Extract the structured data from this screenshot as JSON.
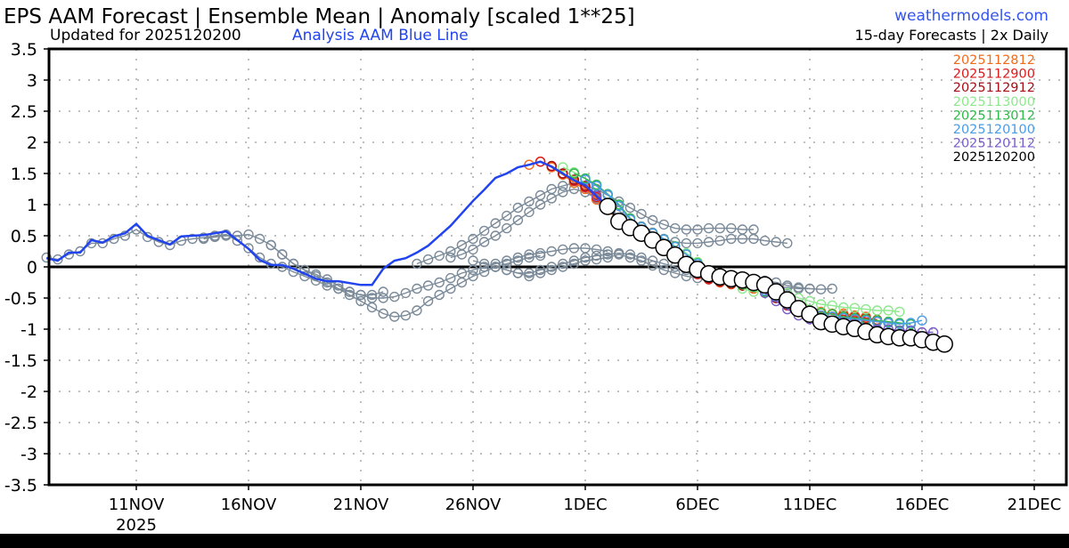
{
  "header": {
    "title": "EPS AAM Forecast | Ensemble Mean | Anomaly [scaled 1**25]",
    "updated": "Updated for 2025120200",
    "analysis_note": "Analysis AAM Blue Line",
    "site": "weathermodels.com",
    "cadence": "15-day Forecasts | 2x Daily"
  },
  "colors": {
    "analysis": "#2244ee",
    "site": "#3355ee",
    "grey": "#7a8a99",
    "axis": "#000000"
  },
  "chart_data": {
    "type": "line",
    "title": "EPS AAM Forecast | Ensemble Mean | Anomaly [scaled 1**25]",
    "x_units": "days since 2025-11-01 00Z",
    "xlim": [
      6.1,
      51.35
    ],
    "ylim": [
      -3.5,
      3.5
    ],
    "grid": true,
    "legend_placement": "top-right",
    "y_ticks": [
      3.5,
      3,
      2.5,
      2,
      1.5,
      1,
      0.5,
      0,
      -0.5,
      -1,
      -1.5,
      -2,
      -2.5,
      -3,
      -3.5
    ],
    "y_tick_labels": [
      "3.5",
      "3",
      "2.5",
      "2",
      "1.5",
      "1",
      "0.5",
      "0",
      "-0.5",
      "-1",
      "-1.5",
      "-2",
      "-2.5",
      "-3",
      "-3.5"
    ],
    "x_ticks": [
      {
        "day": 10,
        "label": "11NOV",
        "sub": "2025"
      },
      {
        "day": 15,
        "label": "16NOV"
      },
      {
        "day": 20,
        "label": "21NOV"
      },
      {
        "day": 25,
        "label": "26NOV"
      },
      {
        "day": 30,
        "label": "1DEC"
      },
      {
        "day": 35,
        "label": "6DEC"
      },
      {
        "day": 40,
        "label": "11DEC"
      },
      {
        "day": 45,
        "label": "16DEC"
      },
      {
        "day": 50,
        "label": "21DEC"
      }
    ],
    "step_days": 0.5,
    "analysis": {
      "name": "Analysis AAM",
      "start": 6,
      "values": [
        0.14,
        0.1,
        0.23,
        0.23,
        0.43,
        0.39,
        0.49,
        0.54,
        0.69,
        0.5,
        0.43,
        0.36,
        0.49,
        0.5,
        0.51,
        0.54,
        0.57,
        0.43,
        0.29,
        0.11,
        0.03,
        0.03,
        -0.03,
        -0.11,
        -0.19,
        -0.23,
        -0.23,
        -0.26,
        -0.29,
        -0.29,
        -0.03,
        0.1,
        0.14,
        0.23,
        0.34,
        0.5,
        0.66,
        0.86,
        1.06,
        1.24,
        1.43,
        1.5,
        1.6,
        1.64,
        1.69,
        1.61,
        1.5,
        1.39,
        1.31,
        1.14,
        0.97
      ]
    },
    "older_runs": [
      {
        "start": 6,
        "values": [
          0.15,
          0.12,
          0.2,
          0.25,
          0.38,
          0.38,
          0.45,
          0.5,
          0.6,
          0.48,
          0.4,
          0.35,
          0.42,
          0.45,
          0.47,
          0.5,
          0.52,
          0.42,
          0.3,
          0.15,
          0.05,
          0,
          -0.08,
          -0.15,
          -0.22,
          -0.3,
          -0.35,
          -0.4,
          -0.45,
          -0.45,
          -0.4
        ]
      },
      {
        "start": 13,
        "values": [
          0.45,
          0.48,
          0.5,
          0.5,
          0.52,
          0.45,
          0.35,
          0.2,
          0.05,
          -0.05,
          -0.15,
          -0.25,
          -0.35,
          -0.45,
          -0.55,
          -0.65,
          -0.75,
          -0.8,
          -0.78,
          -0.7,
          -0.55,
          -0.45,
          -0.35,
          -0.25,
          -0.15,
          -0.08,
          0,
          0.05,
          0.1,
          0.15,
          0.18
        ]
      },
      {
        "start": 16,
        "values": [
          0.35,
          0.2,
          0.05,
          -0.05,
          -0.12,
          -0.2,
          -0.3,
          -0.4,
          -0.45,
          -0.5,
          -0.5,
          -0.48,
          -0.42,
          -0.35,
          -0.3,
          -0.25,
          -0.18,
          -0.1,
          -0.05,
          0,
          0.05,
          0.1,
          0.15,
          0.2,
          0.22,
          0.25,
          0.28,
          0.3,
          0.3,
          0.28,
          0.25
        ]
      },
      {
        "start": 22.5,
        "values": [
          0.05,
          0.12,
          0.18,
          0.25,
          0.35,
          0.45,
          0.58,
          0.7,
          0.82,
          0.95,
          1.05,
          1.15,
          1.25,
          1.3,
          1.35,
          1.3,
          1.25,
          1.15,
          1.05,
          0.95,
          0.85,
          0.75,
          0.68,
          0.62,
          0.6,
          0.6,
          0.62,
          0.62,
          0.62,
          0.6,
          0.6
        ]
      },
      {
        "start": 24,
        "values": [
          0.15,
          0.2,
          0.28,
          0.4,
          0.5,
          0.62,
          0.75,
          0.88,
          1.0,
          1.1,
          1.2,
          1.25,
          1.2,
          1.1,
          1.0,
          0.9,
          0.78,
          0.65,
          0.55,
          0.45,
          0.4,
          0.38,
          0.38,
          0.4,
          0.42,
          0.45,
          0.45,
          0.45,
          0.42,
          0.4,
          0.38
        ]
      },
      {
        "start": 25,
        "values": [
          0.1,
          0.05,
          0,
          -0.05,
          -0.1,
          -0.1,
          -0.05,
          0,
          0.05,
          0.1,
          0.15,
          0.18,
          0.2,
          0.22,
          0.2,
          0.15,
          0.1,
          0.05,
          0,
          -0.05,
          -0.1,
          -0.15,
          -0.2,
          -0.22,
          -0.2,
          -0.2,
          -0.22,
          -0.25,
          -0.3,
          -0.33,
          -0.35
        ]
      },
      {
        "start": 26,
        "values": [
          0,
          -0.05,
          -0.1,
          -0.15,
          -0.1,
          -0.05,
          0,
          0.05,
          0.1,
          0.12,
          0.15,
          0.2,
          0.15,
          0.1,
          0.02,
          -0.05,
          -0.1,
          -0.15,
          -0.18,
          -0.2,
          -0.22,
          -0.25,
          -0.28,
          -0.3,
          -0.3,
          -0.32,
          -0.33,
          -0.35,
          -0.35,
          -0.36,
          -0.35
        ]
      }
    ],
    "series": [
      {
        "name": "2025112812",
        "color": "#f26a1b",
        "start": 27.5,
        "values": [
          1.64,
          1.69,
          1.6,
          1.48,
          1.35,
          1.25,
          1.08,
          0.92,
          0.72,
          0.6,
          0.5,
          0.4,
          0.28,
          0.16,
          0.02,
          -0.1,
          -0.2,
          -0.25,
          -0.28,
          -0.3,
          -0.35,
          -0.4,
          -0.5,
          -0.6,
          -0.65,
          -0.7,
          -0.72,
          -0.75,
          -0.75,
          -0.78,
          -0.8
        ]
      },
      {
        "name": "2025112900",
        "color": "#dd1a1a",
        "start": 28,
        "values": [
          1.69,
          1.62,
          1.5,
          1.38,
          1.28,
          1.12,
          0.95,
          0.75,
          0.62,
          0.52,
          0.42,
          0.3,
          0.18,
          0.04,
          -0.12,
          -0.2,
          -0.24,
          -0.27,
          -0.3,
          -0.33,
          -0.4,
          -0.5,
          -0.6,
          -0.66,
          -0.7,
          -0.74,
          -0.76,
          -0.78,
          -0.8,
          -0.82,
          -0.85
        ]
      },
      {
        "name": "2025112912",
        "color": "#a50f15",
        "start": 28.5,
        "values": [
          1.62,
          1.5,
          1.4,
          1.3,
          1.15,
          0.98,
          0.76,
          0.63,
          0.53,
          0.43,
          0.32,
          0.2,
          0.06,
          -0.08,
          -0.18,
          -0.23,
          -0.27,
          -0.3,
          -0.33,
          -0.4,
          -0.5,
          -0.62,
          -0.7,
          -0.74,
          -0.78,
          -0.8,
          -0.82,
          -0.84,
          -0.86,
          -0.88,
          -0.9
        ]
      },
      {
        "name": "2025113000",
        "color": "#8ee88e",
        "start": 29,
        "values": [
          1.6,
          1.52,
          1.42,
          1.32,
          1.16,
          1.0,
          0.78,
          0.64,
          0.54,
          0.44,
          0.33,
          0.22,
          0.08,
          -0.05,
          -0.15,
          -0.25,
          -0.35,
          -0.4,
          -0.38,
          -0.35,
          -0.42,
          -0.5,
          -0.55,
          -0.6,
          -0.62,
          -0.65,
          -0.66,
          -0.68,
          -0.7,
          -0.7,
          -0.72
        ]
      },
      {
        "name": "2025113012",
        "color": "#2fb84a",
        "start": 29.5,
        "values": [
          1.5,
          1.42,
          1.32,
          1.17,
          1.0,
          0.78,
          0.64,
          0.54,
          0.44,
          0.33,
          0.2,
          0.06,
          -0.06,
          -0.15,
          -0.22,
          -0.28,
          -0.32,
          -0.4,
          -0.48,
          -0.58,
          -0.65,
          -0.7,
          -0.74,
          -0.76,
          -0.8,
          -0.82,
          -0.84,
          -0.86,
          -0.88,
          -0.9,
          -0.92
        ]
      },
      {
        "name": "2025120100",
        "color": "#4a9be8",
        "start": 30,
        "values": [
          1.4,
          1.3,
          1.16,
          0.98,
          0.76,
          0.64,
          0.54,
          0.44,
          0.32,
          0.2,
          0.05,
          -0.06,
          -0.14,
          -0.2,
          -0.25,
          -0.3,
          -0.38,
          -0.48,
          -0.6,
          -0.68,
          -0.74,
          -0.78,
          -0.8,
          -0.82,
          -0.84,
          -0.86,
          -0.88,
          -0.9,
          -0.92,
          -0.9,
          -0.86
        ]
      },
      {
        "name": "2025120112",
        "color": "#7a5cc8",
        "start": 30.5,
        "values": [
          1.14,
          0.98,
          0.74,
          0.63,
          0.53,
          0.43,
          0.31,
          0.19,
          0.04,
          -0.06,
          -0.12,
          -0.18,
          -0.2,
          -0.24,
          -0.3,
          -0.42,
          -0.55,
          -0.68,
          -0.78,
          -0.84,
          -0.88,
          -0.92,
          -0.94,
          -0.96,
          -0.98,
          -1.0,
          -1.0,
          -1.02,
          -1.02,
          -1.05,
          -1.05
        ]
      },
      {
        "name": "2025120200",
        "color": "#000000",
        "start": 31,
        "current": true,
        "values": [
          0.97,
          0.73,
          0.63,
          0.54,
          0.43,
          0.31,
          0.19,
          0.04,
          -0.04,
          -0.11,
          -0.16,
          -0.19,
          -0.21,
          -0.25,
          -0.29,
          -0.4,
          -0.53,
          -0.67,
          -0.76,
          -0.88,
          -0.92,
          -0.96,
          -0.99,
          -1.04,
          -1.09,
          -1.12,
          -1.14,
          -1.14,
          -1.17,
          -1.21,
          -1.24
        ]
      }
    ]
  }
}
